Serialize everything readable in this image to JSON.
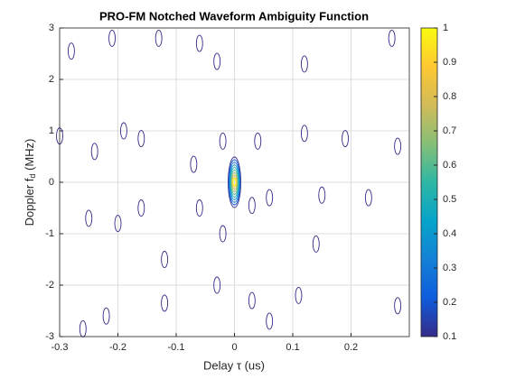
{
  "chart_data": {
    "type": "contour",
    "title": "PRO-FM Notched Waveform Ambiguity Function",
    "xlabel": "Delay  τ  (us)",
    "ylabel": "Doppler  f",
    "ylabel_sub": "d",
    "ylabel_unit": "  (MHz)",
    "xlim": [
      -0.3,
      0.3
    ],
    "xticks": [
      -0.3,
      -0.2,
      -0.1,
      0,
      0.1,
      0.2
    ],
    "ylim": [
      -3,
      3
    ],
    "yticks": [
      -3,
      -2,
      -1,
      0,
      1,
      2,
      3
    ],
    "clim": [
      0.1,
      1
    ],
    "cticks": [
      0.1,
      0.2,
      0.3,
      0.4,
      0.5,
      0.6,
      0.7,
      0.8,
      0.9,
      1
    ],
    "grid": true,
    "x": [
      -0.28,
      -0.21,
      -0.13,
      -0.06,
      -0.03,
      0.12,
      0.27,
      -0.3,
      -0.24,
      -0.19,
      -0.16,
      -0.07,
      -0.02,
      0.04,
      0.12,
      0.19,
      0.28,
      -0.25,
      -0.2,
      -0.16,
      -0.06,
      0.03,
      0.06,
      0.15,
      0.23,
      0.14,
      -0.02,
      -0.12,
      -0.03,
      0.03,
      -0.12,
      0.11,
      0.28,
      0.06,
      -0.26,
      -0.22,
      0,
      0,
      0,
      0,
      0,
      0,
      0,
      0,
      0,
      0
    ],
    "y": [
      2.55,
      2.8,
      2.8,
      2.7,
      2.35,
      2.3,
      2.8,
      0.9,
      0.6,
      1.0,
      0.85,
      0.35,
      0.8,
      0.8,
      0.95,
      0.85,
      0.7,
      -0.7,
      -0.8,
      -0.5,
      -0.5,
      -0.45,
      -0.3,
      -0.25,
      -0.3,
      -1.2,
      -1.0,
      -1.5,
      -2.0,
      -2.3,
      -2.35,
      -2.2,
      -2.4,
      -2.7,
      -2.85,
      -2.6,
      0,
      0,
      0,
      0,
      0,
      0,
      0,
      0,
      0,
      0
    ],
    "values": [
      0.1,
      0.1,
      0.1,
      0.1,
      0.1,
      0.1,
      0.1,
      0.1,
      0.1,
      0.1,
      0.1,
      0.1,
      0.1,
      0.1,
      0.1,
      0.1,
      0.1,
      0.1,
      0.1,
      0.1,
      0.1,
      0.1,
      0.1,
      0.1,
      0.1,
      0.1,
      0.1,
      0.1,
      0.1,
      0.1,
      0.1,
      0.1,
      0.1,
      0.1,
      0.1,
      0.1,
      0.1,
      0.2,
      0.3,
      0.4,
      0.5,
      0.6,
      0.7,
      0.8,
      0.9,
      1
    ]
  }
}
